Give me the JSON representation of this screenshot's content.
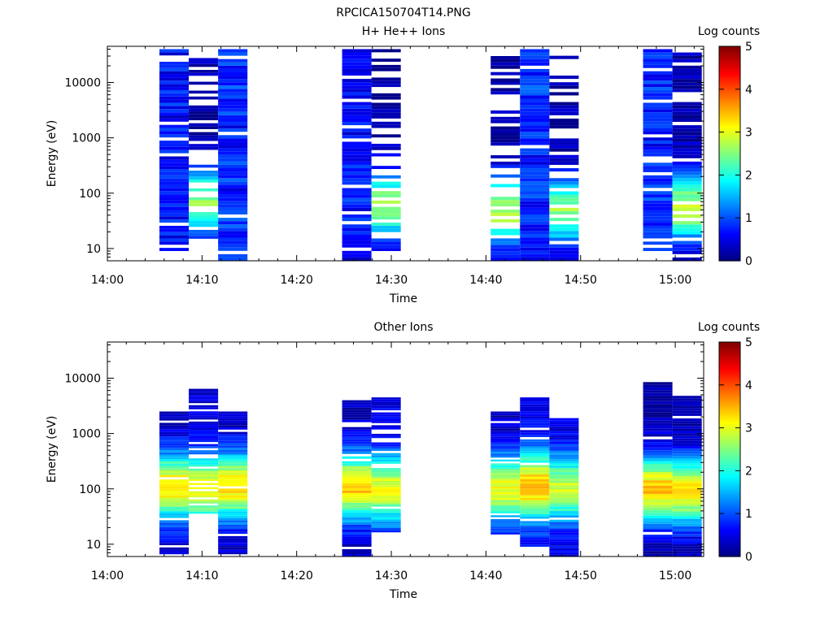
{
  "figure_title": "RPCICA150704T14.PNG",
  "colorbar": {
    "label": "Log counts",
    "ticks": [
      "0",
      "1",
      "2",
      "3",
      "4",
      "5"
    ],
    "range": [
      0,
      5
    ]
  },
  "chart_data": [
    {
      "type": "heatmap",
      "title": "H+ He++ Ions",
      "xlabel": "Time",
      "ylabel": "Energy (eV)",
      "x_ticks": [
        "14:00",
        "14:10",
        "14:20",
        "14:30",
        "14:40",
        "14:50",
        "15:00"
      ],
      "xlim": [
        "14:00",
        "15:03"
      ],
      "y_ticks": [
        "10",
        "100",
        "1000",
        "10000"
      ],
      "y_scale": "log",
      "ylim": [
        6,
        45000
      ],
      "color_scale": "log counts 0-5",
      "colorbar_label": "Log counts",
      "colorbar_ticks": [
        "0",
        "1",
        "2",
        "3",
        "4",
        "5"
      ],
      "columns": [
        {
          "start": "14:05.5",
          "end": "14:08.6",
          "emin": 9,
          "emax": 40000,
          "profile": "low",
          "base": 0.5,
          "peak": 0.9,
          "peak_e": 100,
          "gap": 0.12
        },
        {
          "start": "14:08.6",
          "end": "14:11.7",
          "emin": 15,
          "emax": 40000,
          "profile": "peak",
          "base": 0.2,
          "peak": 2.6,
          "peak_e": 70,
          "gap": 0.35
        },
        {
          "start": "14:11.7",
          "end": "14:14.8",
          "emin": 6,
          "emax": 40000,
          "profile": "low",
          "base": 0.6,
          "peak": 1.0,
          "peak_e": 100,
          "gap": 0.05
        },
        {
          "start": "14:24.8",
          "end": "14:27.9",
          "emin": 6,
          "emax": 40000,
          "profile": "low",
          "base": 0.5,
          "peak": 0.9,
          "peak_e": 100,
          "gap": 0.1
        },
        {
          "start": "14:27.9",
          "end": "14:31.0",
          "emin": 9,
          "emax": 40000,
          "profile": "peak",
          "base": 0.2,
          "peak": 2.7,
          "peak_e": 60,
          "gap": 0.35
        },
        {
          "start": "14:40.5",
          "end": "14:43.6",
          "emin": 6,
          "emax": 30000,
          "profile": "peak",
          "base": 0.2,
          "peak": 2.8,
          "peak_e": 50,
          "gap": 0.4
        },
        {
          "start": "14:43.6",
          "end": "14:46.7",
          "emin": 6,
          "emax": 40000,
          "profile": "low",
          "base": 0.6,
          "peak": 1.0,
          "peak_e": 100,
          "gap": 0.05
        },
        {
          "start": "14:46.7",
          "end": "14:49.8",
          "emin": 6,
          "emax": 40000,
          "profile": "peak",
          "base": 0.2,
          "peak": 2.6,
          "peak_e": 50,
          "gap": 0.35
        },
        {
          "start": "14:56.6",
          "end": "14:59.7",
          "emin": 9,
          "emax": 40000,
          "profile": "low",
          "base": 0.6,
          "peak": 0.9,
          "peak_e": 100,
          "gap": 0.12
        },
        {
          "start": "14:59.7",
          "end": "15:02.8",
          "emin": 6,
          "emax": 40000,
          "profile": "peak",
          "base": 0.2,
          "peak": 2.8,
          "peak_e": 55,
          "gap": 0.3
        }
      ]
    },
    {
      "type": "heatmap",
      "title": "Other Ions",
      "xlabel": "Time",
      "ylabel": "Energy (eV)",
      "x_ticks": [
        "14:00",
        "14:10",
        "14:20",
        "14:30",
        "14:40",
        "14:50",
        "15:00"
      ],
      "xlim": [
        "14:00",
        "15:03"
      ],
      "y_ticks": [
        "10",
        "100",
        "1000",
        "10000"
      ],
      "y_scale": "log",
      "ylim": [
        6,
        45000
      ],
      "color_scale": "log counts 0-5",
      "colorbar_label": "Log counts",
      "colorbar_ticks": [
        "0",
        "1",
        "2",
        "3",
        "4",
        "5"
      ],
      "columns": [
        {
          "start": "14:05.5",
          "end": "14:08.6",
          "emin": 6,
          "emax": 2500,
          "profile": "peak",
          "base": 0.3,
          "peak": 3.3,
          "peak_e": 110,
          "gap": 0.05
        },
        {
          "start": "14:08.6",
          "end": "14:11.7",
          "emin": 30,
          "emax": 7000,
          "profile": "peak",
          "base": 0.4,
          "peak": 3.1,
          "peak_e": 100,
          "gap": 0.1
        },
        {
          "start": "14:11.7",
          "end": "14:14.8",
          "emin": 6,
          "emax": 2500,
          "profile": "peak",
          "base": 0.3,
          "peak": 3.3,
          "peak_e": 110,
          "gap": 0.05
        },
        {
          "start": "14:24.8",
          "end": "14:27.9",
          "emin": 6,
          "emax": 4000,
          "profile": "peak",
          "base": 0.3,
          "peak": 3.4,
          "peak_e": 110,
          "gap": 0.05
        },
        {
          "start": "14:27.9",
          "end": "14:31.0",
          "emin": 15,
          "emax": 4500,
          "profile": "peak",
          "base": 0.5,
          "peak": 3.0,
          "peak_e": 100,
          "gap": 0.1
        },
        {
          "start": "14:40.5",
          "end": "14:43.6",
          "emin": 15,
          "emax": 2500,
          "profile": "peak",
          "base": 0.3,
          "peak": 3.1,
          "peak_e": 100,
          "gap": 0.08
        },
        {
          "start": "14:43.6",
          "end": "14:46.7",
          "emin": 9,
          "emax": 4500,
          "profile": "peak",
          "base": 0.5,
          "peak": 3.5,
          "peak_e": 110,
          "gap": 0.06
        },
        {
          "start": "14:46.7",
          "end": "14:49.8",
          "emin": 6,
          "emax": 1900,
          "profile": "peak",
          "base": 0.4,
          "peak": 2.9,
          "peak_e": 100,
          "gap": 0.08
        },
        {
          "start": "14:56.6",
          "end": "14:59.7",
          "emin": 6,
          "emax": 8500,
          "profile": "peak",
          "base": 0.2,
          "peak": 3.4,
          "peak_e": 100,
          "gap": 0.05
        },
        {
          "start": "14:59.7",
          "end": "15:02.8",
          "emin": 6,
          "emax": 4800,
          "profile": "peak",
          "base": 0.2,
          "peak": 3.3,
          "peak_e": 90,
          "gap": 0.1
        }
      ]
    }
  ]
}
